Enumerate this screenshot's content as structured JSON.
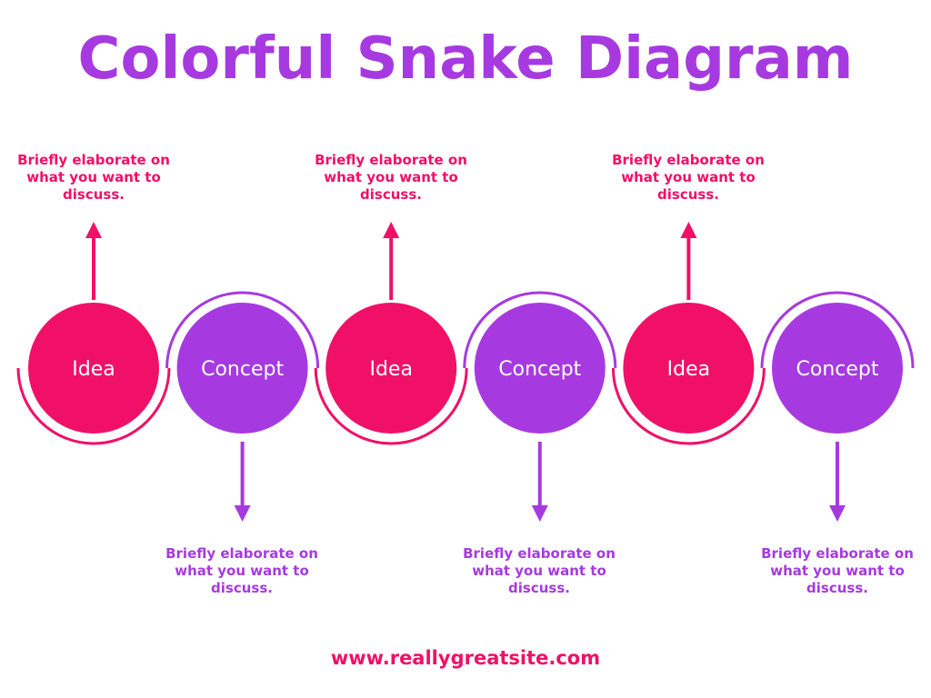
{
  "title": "Colorful Snake Diagram",
  "colors": {
    "pink": "#f01068",
    "purple": "#a63ae0",
    "background": "#ffffff"
  },
  "nodes": [
    {
      "label": "Idea",
      "color": "pink",
      "arrow": "up",
      "description": "Briefly elaborate on what you want to discuss."
    },
    {
      "label": "Concept",
      "color": "purple",
      "arrow": "down",
      "description": "Briefly elaborate on what you want to discuss."
    },
    {
      "label": "Idea",
      "color": "pink",
      "arrow": "up",
      "description": "Briefly elaborate on what you want to discuss."
    },
    {
      "label": "Concept",
      "color": "purple",
      "arrow": "down",
      "description": "Briefly elaborate on what you want to discuss."
    },
    {
      "label": "Idea",
      "color": "pink",
      "arrow": "up",
      "description": "Briefly elaborate on what you want to discuss."
    },
    {
      "label": "Concept",
      "color": "purple",
      "arrow": "down",
      "description": "Briefly elaborate on what you want to discuss."
    }
  ],
  "footer": "www.reallygreatsite.com"
}
